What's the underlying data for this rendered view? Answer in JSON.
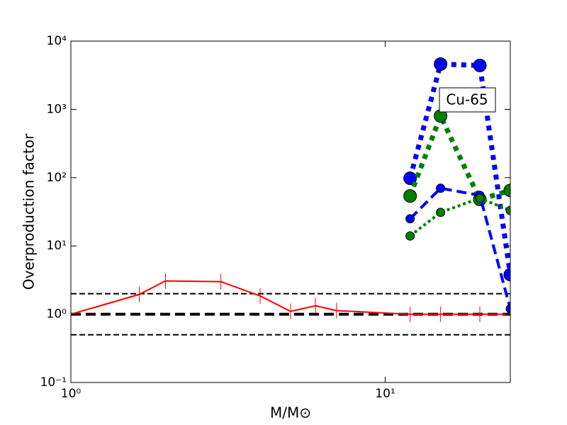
{
  "chart_data": {
    "type": "line",
    "xlabel": "M/M⊙",
    "ylabel": "Overproduction factor",
    "annotation": "Cu-65",
    "x_log": true,
    "y_log": true,
    "xlim": [
      1,
      25
    ],
    "ylim": [
      0.1,
      10000
    ],
    "xticks": [
      {
        "value": 1,
        "label": "10⁰"
      },
      {
        "value": 10,
        "label": "10¹"
      }
    ],
    "yticks": [
      {
        "value": 0.1,
        "label": "10⁻¹"
      },
      {
        "value": 1,
        "label": "10⁰"
      },
      {
        "value": 10,
        "label": "10¹"
      },
      {
        "value": 100,
        "label": "10²"
      },
      {
        "value": 1000,
        "label": "10³"
      },
      {
        "value": 10000,
        "label": "10⁴"
      }
    ],
    "hlines": [
      {
        "value": 2,
        "color": "#000000",
        "linestyle": "dashed",
        "linewidth": 2
      },
      {
        "value": 1,
        "color": "#000000",
        "linestyle": "dashed",
        "linewidth": 4
      },
      {
        "value": 0.5,
        "color": "#000000",
        "linestyle": "dashed",
        "linewidth": 2
      }
    ],
    "series": [
      {
        "color": "#ff0000",
        "linestyle": "solid",
        "linewidth": 2,
        "marker": "tick",
        "x": [
          1,
          1.65,
          2,
          3,
          4,
          5,
          6,
          7,
          12,
          15,
          20,
          25
        ],
        "values": [
          1.0,
          1.95,
          3.07,
          3.0,
          1.85,
          1.1,
          1.33,
          1.13,
          1.0,
          1.0,
          1.0,
          1.0
        ]
      },
      {
        "color": "#0000ff",
        "linestyle": "dotted",
        "linewidth": 7,
        "marker": "circle",
        "markersize": 9,
        "x": [
          12,
          15,
          20,
          25
        ],
        "values": [
          98,
          4600,
          4400,
          3.8
        ]
      },
      {
        "color": "#008000",
        "linestyle": "dotted",
        "linewidth": 7,
        "marker": "circle",
        "markersize": 9,
        "x": [
          12,
          15,
          20,
          25
        ],
        "values": [
          54,
          800,
          48,
          65
        ]
      },
      {
        "color": "#0000ff",
        "linestyle": "dashed",
        "linewidth": 4,
        "marker": "circle",
        "markersize": 6,
        "x": [
          12,
          15,
          20,
          25
        ],
        "values": [
          25,
          70,
          55,
          1.2
        ]
      },
      {
        "color": "#008000",
        "linestyle": "dotted",
        "linewidth": 4,
        "marker": "circle",
        "markersize": 6,
        "x": [
          12,
          15,
          20,
          25
        ],
        "values": [
          14,
          31,
          50,
          33
        ]
      }
    ]
  }
}
